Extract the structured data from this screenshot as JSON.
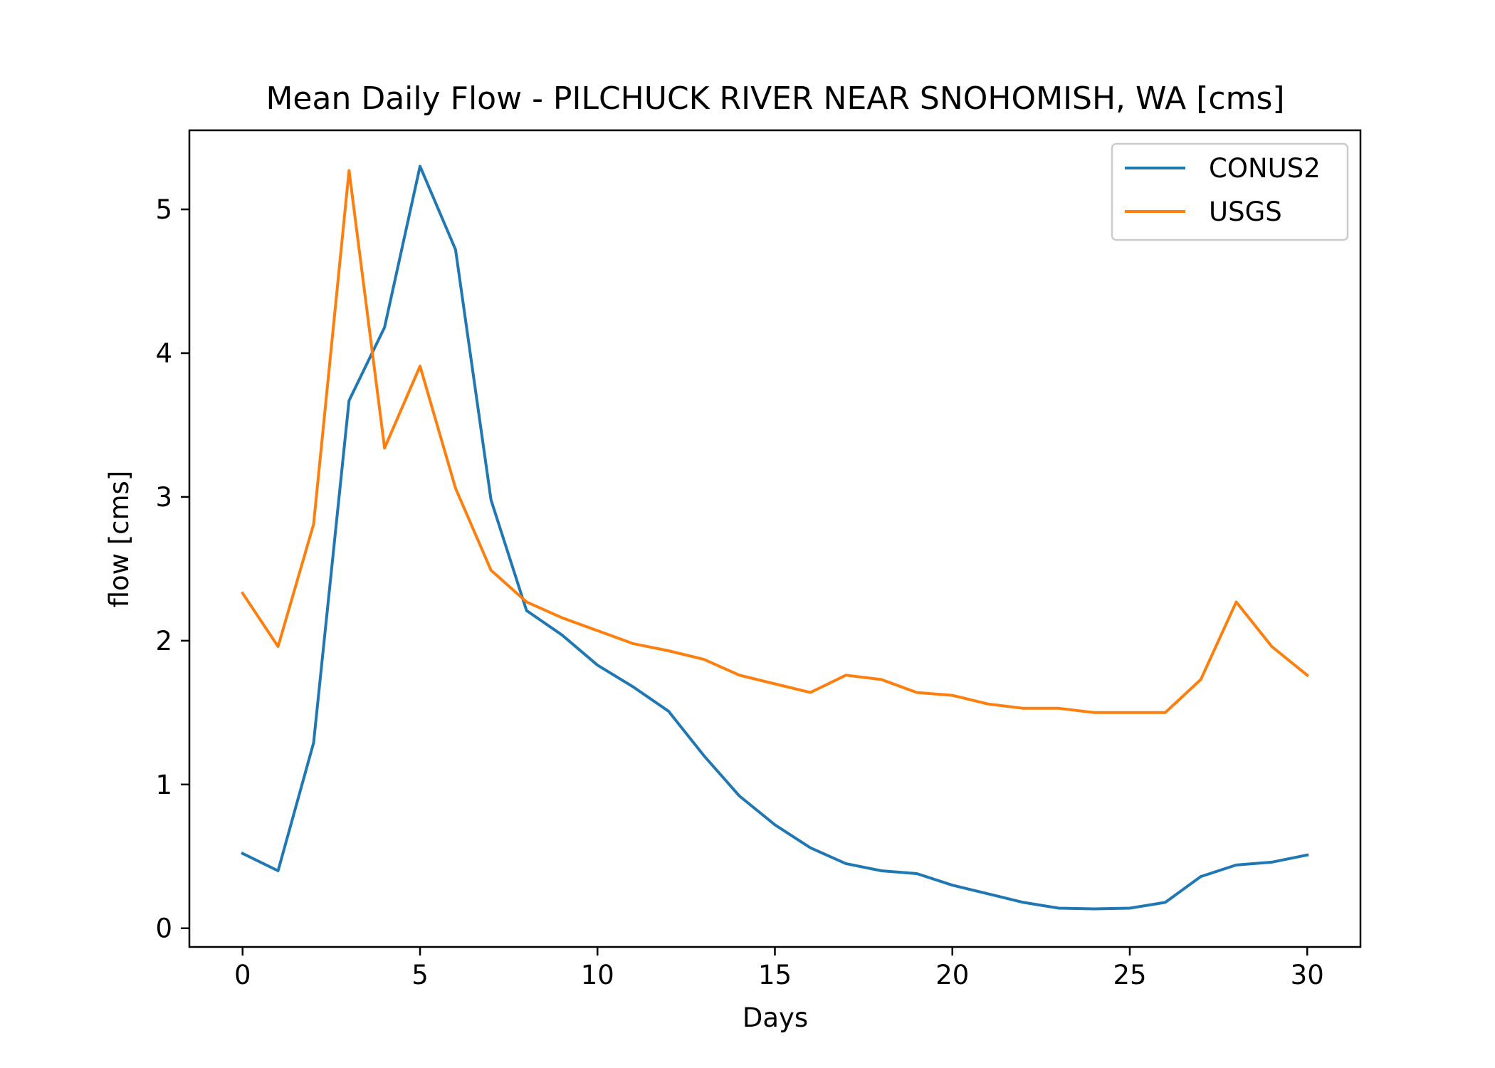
{
  "chart_data": {
    "type": "line",
    "title": "Mean Daily Flow - PILCHUCK RIVER NEAR SNOHOMISH, WA [cms]",
    "xlabel": "Days",
    "ylabel": "flow [cms]",
    "xlim": [
      -1.5,
      31.5
    ],
    "ylim": [
      -0.13,
      5.55
    ],
    "xticks": [
      0,
      5,
      10,
      15,
      20,
      25,
      30
    ],
    "yticks": [
      0,
      1,
      2,
      3,
      4,
      5
    ],
    "grid": false,
    "legend_position": "top-right",
    "x": [
      0,
      1,
      2,
      3,
      4,
      5,
      6,
      7,
      8,
      9,
      10,
      11,
      12,
      13,
      14,
      15,
      16,
      17,
      18,
      19,
      20,
      21,
      22,
      23,
      24,
      25,
      26,
      27,
      28,
      29,
      30
    ],
    "series": [
      {
        "name": "CONUS2",
        "color": "#1f77b4",
        "values": [
          0.52,
          0.4,
          1.29,
          3.67,
          4.18,
          5.3,
          4.72,
          2.98,
          2.21,
          2.04,
          1.83,
          1.68,
          1.51,
          1.2,
          0.92,
          0.72,
          0.56,
          0.45,
          0.4,
          0.38,
          0.3,
          0.24,
          0.18,
          0.14,
          0.135,
          0.14,
          0.18,
          0.36,
          0.44,
          0.46,
          0.51
        ]
      },
      {
        "name": "USGS",
        "color": "#ff7f0e",
        "values": [
          2.33,
          1.96,
          2.81,
          5.27,
          3.34,
          3.91,
          3.06,
          2.49,
          2.27,
          2.16,
          2.07,
          1.98,
          1.93,
          1.87,
          1.76,
          1.7,
          1.64,
          1.76,
          1.73,
          1.64,
          1.62,
          1.56,
          1.53,
          1.53,
          1.5,
          1.5,
          1.5,
          1.73,
          2.27,
          1.96,
          1.76
        ]
      }
    ]
  }
}
